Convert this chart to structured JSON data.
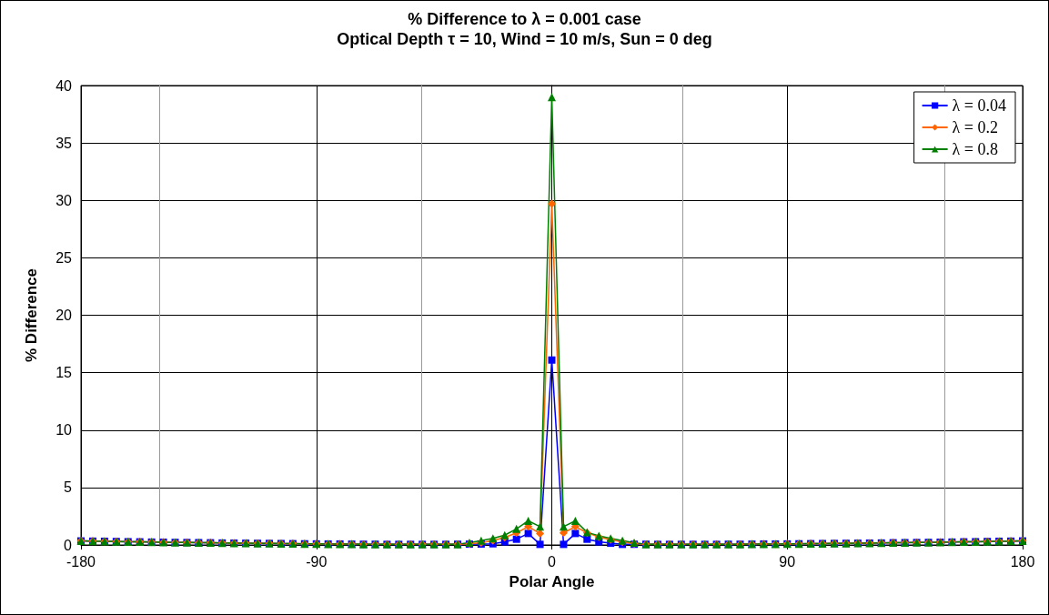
{
  "chart_data": {
    "type": "line",
    "title": "% Difference to λ = 0.001 case",
    "subtitle": "Optical Depth τ = 10, Wind = 10 m/s, Sun = 0 deg",
    "xlabel": "Polar Angle",
    "ylabel": "% Difference",
    "x": [
      -180,
      -175.5,
      -171,
      -166.5,
      -162,
      -157.5,
      -153,
      -148.5,
      -144,
      -139.5,
      -135,
      -130.5,
      -126,
      -121.5,
      -117,
      -112.5,
      -108,
      -103.5,
      -99,
      -94.5,
      -90,
      -85.5,
      -81,
      -76.5,
      -72,
      -67.5,
      -63,
      -58.5,
      -54,
      -49.5,
      -45,
      -40.5,
      -36,
      -31.5,
      -27,
      -22.5,
      -18,
      -13.5,
      -9,
      -4.5,
      0,
      4.5,
      9,
      13.5,
      18,
      22.5,
      27,
      31.5,
      36,
      40.5,
      45,
      49.5,
      54,
      58.5,
      63,
      67.5,
      72,
      76.5,
      81,
      85.5,
      90,
      94.5,
      99,
      103.5,
      108,
      112.5,
      117,
      121.5,
      126,
      130.5,
      135,
      139.5,
      144,
      148.5,
      153,
      157.5,
      162,
      166.5,
      171,
      175.5,
      180
    ],
    "series": [
      {
        "name": "λ = 0.04",
        "color": "#0000ff",
        "marker": "square",
        "values": [
          0.35,
          0.33,
          0.32,
          0.3,
          0.28,
          0.27,
          0.25,
          0.24,
          0.22,
          0.21,
          0.2,
          0.19,
          0.17,
          0.16,
          0.15,
          0.14,
          0.13,
          0.12,
          0.11,
          0.1,
          0.09,
          0.08,
          0.08,
          0.07,
          0.06,
          0.06,
          0.05,
          0.05,
          0.05,
          0.05,
          0.05,
          0.05,
          0.06,
          0.07,
          0.08,
          0.1,
          0.27,
          0.5,
          1.0,
          0.05,
          16.1,
          0.05,
          1.0,
          0.5,
          0.27,
          0.15,
          0.05,
          0.06,
          0.06,
          0.05,
          0.05,
          0.05,
          0.05,
          0.05,
          0.05,
          0.06,
          0.06,
          0.07,
          0.08,
          0.08,
          0.09,
          0.1,
          0.11,
          0.12,
          0.13,
          0.14,
          0.15,
          0.16,
          0.17,
          0.19,
          0.2,
          0.21,
          0.22,
          0.24,
          0.25,
          0.27,
          0.28,
          0.3,
          0.32,
          0.33,
          0.35
        ]
      },
      {
        "name": "λ = 0.2",
        "color": "#ff6600",
        "marker": "diamond",
        "values": [
          0.35,
          0.33,
          0.32,
          0.3,
          0.28,
          0.27,
          0.25,
          0.24,
          0.22,
          0.21,
          0.2,
          0.19,
          0.17,
          0.16,
          0.15,
          0.14,
          0.13,
          0.12,
          0.11,
          0.1,
          0.09,
          0.08,
          0.08,
          0.07,
          0.06,
          0.06,
          0.05,
          0.05,
          0.05,
          0.05,
          0.05,
          0.05,
          0.06,
          0.1,
          0.2,
          0.37,
          0.65,
          1.05,
          1.6,
          1.0,
          29.7,
          1.05,
          1.6,
          1.05,
          0.7,
          0.45,
          0.25,
          0.12,
          0.06,
          0.05,
          0.05,
          0.05,
          0.05,
          0.05,
          0.05,
          0.06,
          0.06,
          0.07,
          0.08,
          0.08,
          0.09,
          0.1,
          0.11,
          0.12,
          0.13,
          0.14,
          0.15,
          0.16,
          0.17,
          0.19,
          0.2,
          0.21,
          0.22,
          0.24,
          0.25,
          0.27,
          0.28,
          0.3,
          0.32,
          0.33,
          0.35
        ]
      },
      {
        "name": "λ = 0.8",
        "color": "#008000",
        "marker": "triangle",
        "values": [
          0.35,
          0.33,
          0.32,
          0.3,
          0.28,
          0.27,
          0.25,
          0.24,
          0.22,
          0.21,
          0.2,
          0.19,
          0.17,
          0.16,
          0.15,
          0.14,
          0.13,
          0.12,
          0.11,
          0.1,
          0.09,
          0.08,
          0.08,
          0.07,
          0.06,
          0.06,
          0.05,
          0.05,
          0.05,
          0.05,
          0.05,
          0.05,
          0.06,
          0.2,
          0.37,
          0.58,
          0.85,
          1.4,
          2.1,
          1.6,
          39.0,
          1.6,
          2.1,
          1.1,
          0.8,
          0.58,
          0.37,
          0.2,
          0.06,
          0.05,
          0.05,
          0.05,
          0.05,
          0.05,
          0.05,
          0.06,
          0.06,
          0.07,
          0.08,
          0.08,
          0.09,
          0.1,
          0.11,
          0.12,
          0.13,
          0.14,
          0.15,
          0.16,
          0.17,
          0.19,
          0.2,
          0.21,
          0.22,
          0.24,
          0.25,
          0.27,
          0.28,
          0.3,
          0.32,
          0.33,
          0.35
        ]
      }
    ],
    "xlim": [
      -180,
      180
    ],
    "xticks": [
      -180,
      -90,
      0,
      90,
      180
    ],
    "ylim": [
      0,
      40
    ],
    "yticks": [
      0,
      5,
      10,
      15,
      20,
      25,
      30,
      35,
      40
    ],
    "grid": true,
    "legend": "top right",
    "line_style": "solid"
  }
}
